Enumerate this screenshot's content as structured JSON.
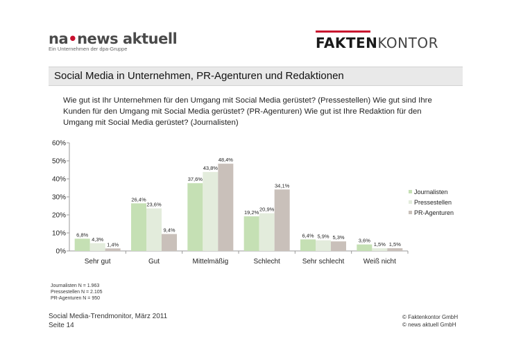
{
  "logo_left": {
    "prefix": "na",
    "dot": "•",
    "name": "news aktuell",
    "tagline": "Ein Unternehmen der dpa-Gruppe"
  },
  "logo_right": {
    "bold": "FAKTEN",
    "light": "KONTOR"
  },
  "slide_title": "Social Media in Unternehmen, PR-Agenturen und Redaktionen",
  "question": "Wie gut ist Ihr Unternehmen für den Umgang mit Social Media gerüstet? (Pressestellen) Wie gut sind Ihre Kunden für den Umgang mit Social Media gerüstet? (PR-Agenturen) Wie gut ist Ihre Redaktion für den Umgang mit Social Media gerüstet? (Journalisten)",
  "colors": {
    "Journalisten": "#c5e0b4",
    "Pressestellen": "#e3ecdc",
    "PR-Agenturen": "#c9c0ba",
    "axis": "#999999"
  },
  "chart_data": {
    "type": "bar",
    "categories": [
      "Sehr gut",
      "Gut",
      "Mittelmäßig",
      "Schlecht",
      "Sehr schlecht",
      "Weiß nicht"
    ],
    "series": [
      {
        "name": "Journalisten",
        "values": [
          6.8,
          26.4,
          37.6,
          19.2,
          6.4,
          3.6
        ],
        "labels": [
          "6,8%",
          "26,4%",
          "37,6%",
          "19,2%",
          "6,4%",
          "3,6%"
        ]
      },
      {
        "name": "Pressestellen",
        "values": [
          4.3,
          23.6,
          43.8,
          20.9,
          5.9,
          1.5
        ],
        "labels": [
          "4,3%",
          "23,6%",
          "43,8%",
          "20,9%",
          "5,9%",
          "1,5%"
        ]
      },
      {
        "name": "PR-Agenturen",
        "values": [
          1.4,
          9.4,
          48.4,
          34.1,
          5.3,
          1.5
        ],
        "labels": [
          "1,4%",
          "9,4%",
          "48,4%",
          "34,1%",
          "5,3%",
          "1,5%"
        ]
      }
    ],
    "yticks": [
      "0%",
      "10%",
      "20%",
      "30%",
      "40%",
      "50%",
      "60%"
    ],
    "ylim": [
      0,
      60
    ],
    "legend_position": "right",
    "grid": false
  },
  "sample_basis": [
    "Journalisten N = 1.963",
    "Pressestellen N = 2.105",
    "PR-Agenturen N = 950"
  ],
  "footer": {
    "source": "Social Media-Trendmonitor, März 2011",
    "page": "Seite 14",
    "copyright1": "© Faktenkontor GmbH",
    "copyright2": "© news aktuell GmbH"
  }
}
